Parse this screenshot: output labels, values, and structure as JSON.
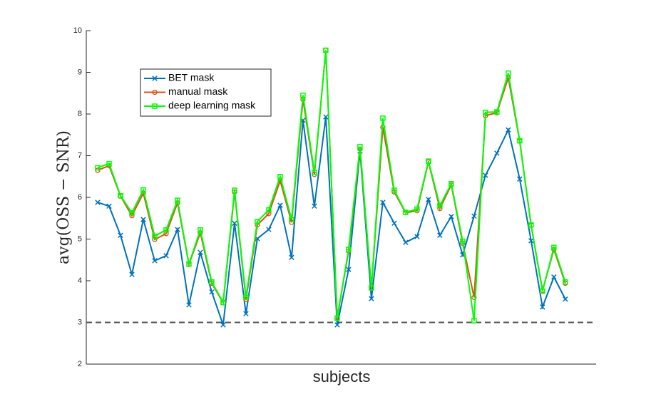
{
  "chart_data": {
    "type": "line",
    "x_label": "subjects",
    "y_label": "avg(OSS − SNR)",
    "x": [
      1,
      2,
      3,
      4,
      5,
      6,
      7,
      8,
      9,
      10,
      11,
      12,
      13,
      14,
      15,
      16,
      17,
      18,
      19,
      20,
      21,
      22,
      23,
      24,
      25,
      26,
      27,
      28,
      29,
      30,
      31,
      32,
      33,
      34,
      35,
      36,
      37,
      38,
      39,
      40,
      41,
      42
    ],
    "xlim": [
      0,
      44.7
    ],
    "ylim": [
      2,
      10
    ],
    "yticks": [
      2,
      3,
      4,
      5,
      6,
      7,
      8,
      9,
      10
    ],
    "reference_line": 3,
    "legend": "upper left",
    "series": [
      {
        "name": "BET mask",
        "color": "#0072BD",
        "marker": "x",
        "values": [
          5.88,
          5.79,
          5.09,
          4.15,
          5.47,
          4.48,
          4.6,
          5.23,
          3.42,
          4.68,
          3.73,
          2.94,
          5.38,
          3.21,
          5.01,
          5.23,
          5.81,
          4.56,
          7.85,
          5.79,
          7.93,
          2.94,
          4.27,
          7.11,
          3.57,
          5.88,
          5.38,
          4.92,
          5.06,
          5.95,
          5.09,
          5.54,
          4.62,
          5.55,
          6.53,
          7.06,
          7.62,
          6.44,
          4.96,
          3.37,
          4.09,
          3.56
        ]
      },
      {
        "name": "manual mask",
        "color": "#D95319",
        "marker": "circle",
        "values": [
          6.65,
          6.76,
          6.03,
          5.56,
          6.1,
          4.99,
          5.13,
          5.87,
          4.39,
          5.15,
          3.94,
          3.47,
          6.13,
          3.55,
          5.34,
          5.61,
          6.4,
          5.4,
          8.35,
          6.55,
          9.53,
          3.12,
          4.71,
          7.16,
          3.82,
          7.68,
          6.13,
          5.63,
          5.68,
          6.85,
          5.73,
          6.3,
          4.9,
          3.6,
          7.96,
          8.03,
          8.87,
          7.35,
          5.33,
          3.77,
          4.75,
          3.94
        ]
      },
      {
        "name": "deep learning mask",
        "color": "#00FF00",
        "marker": "square",
        "values": [
          6.71,
          6.81,
          6.04,
          5.63,
          6.18,
          5.07,
          5.22,
          5.93,
          4.4,
          5.22,
          3.97,
          3.48,
          6.17,
          3.6,
          5.42,
          5.7,
          6.5,
          5.47,
          8.45,
          6.6,
          9.53,
          3.1,
          4.75,
          7.22,
          3.83,
          7.9,
          6.17,
          5.64,
          5.72,
          6.87,
          5.8,
          6.33,
          4.95,
          3.04,
          8.04,
          8.05,
          8.98,
          7.36,
          5.34,
          3.75,
          4.8,
          3.97
        ]
      }
    ]
  }
}
